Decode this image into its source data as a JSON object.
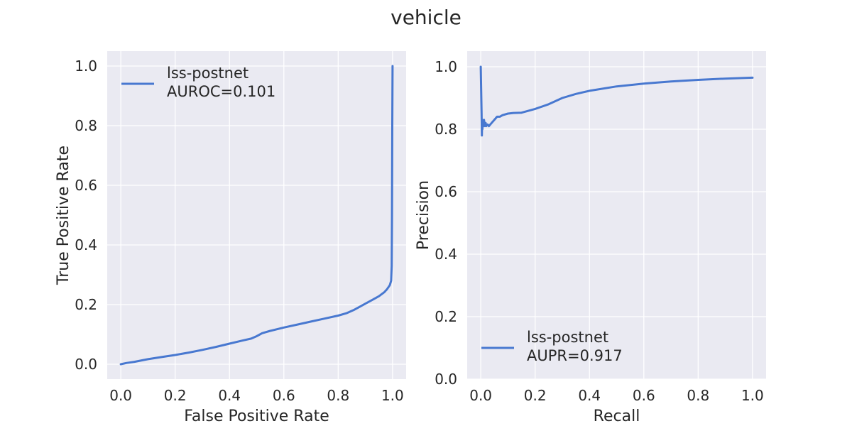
{
  "figure": {
    "title": "vehicle"
  },
  "chart_data": [
    {
      "type": "line",
      "xlabel": "False Positive Rate",
      "ylabel": "True Positive Rate",
      "xlim": [
        -0.05,
        1.05
      ],
      "ylim": [
        -0.05,
        1.05
      ],
      "xticks": [
        "0.0",
        "0.2",
        "0.4",
        "0.6",
        "0.8",
        "1.0"
      ],
      "yticks": [
        "0.0",
        "0.2",
        "0.4",
        "0.6",
        "0.8",
        "1.0"
      ],
      "grid": true,
      "legend_position": "top-left",
      "line_color": "#4878d0",
      "series": [
        {
          "name": "lss-postnet",
          "legend_text": [
            "lss-postnet",
            "AUROC=0.101"
          ],
          "x": [
            0.0,
            0.02,
            0.05,
            0.1,
            0.15,
            0.2,
            0.25,
            0.3,
            0.35,
            0.4,
            0.45,
            0.48,
            0.5,
            0.52,
            0.55,
            0.6,
            0.65,
            0.7,
            0.75,
            0.8,
            0.83,
            0.86,
            0.88,
            0.9,
            0.93,
            0.95,
            0.97,
            0.98,
            0.99,
            0.995,
            0.997,
            0.998,
            0.999,
            1.0
          ],
          "y": [
            0.0,
            0.004,
            0.008,
            0.017,
            0.024,
            0.031,
            0.039,
            0.048,
            0.058,
            0.069,
            0.08,
            0.086,
            0.094,
            0.104,
            0.112,
            0.123,
            0.133,
            0.143,
            0.153,
            0.163,
            0.171,
            0.183,
            0.193,
            0.203,
            0.218,
            0.228,
            0.242,
            0.252,
            0.265,
            0.28,
            0.33,
            0.5,
            0.8,
            1.0
          ]
        }
      ]
    },
    {
      "type": "line",
      "xlabel": "Recall",
      "ylabel": "Precision",
      "xlim": [
        -0.05,
        1.05
      ],
      "ylim": [
        0.0,
        1.05
      ],
      "xticks": [
        "0.0",
        "0.2",
        "0.4",
        "0.6",
        "0.8",
        "1.0"
      ],
      "yticks": [
        "0.0",
        "0.2",
        "0.4",
        "0.6",
        "0.8",
        "1.0"
      ],
      "grid": true,
      "legend_position": "bottom-left",
      "line_color": "#4878d0",
      "series": [
        {
          "name": "lss-postnet",
          "legend_text": [
            "lss-postnet",
            "AUPR=0.917"
          ],
          "x": [
            0.0,
            0.001,
            0.002,
            0.003,
            0.004,
            0.005,
            0.006,
            0.008,
            0.01,
            0.012,
            0.015,
            0.018,
            0.02,
            0.025,
            0.03,
            0.04,
            0.05,
            0.06,
            0.07,
            0.08,
            0.1,
            0.12,
            0.15,
            0.18,
            0.2,
            0.25,
            0.3,
            0.35,
            0.4,
            0.5,
            0.6,
            0.7,
            0.8,
            0.9,
            1.0
          ],
          "y": [
            1.0,
            0.95,
            0.9,
            0.85,
            0.78,
            0.83,
            0.8,
            0.82,
            0.81,
            0.83,
            0.81,
            0.82,
            0.81,
            0.815,
            0.81,
            0.82,
            0.83,
            0.84,
            0.84,
            0.845,
            0.85,
            0.852,
            0.853,
            0.86,
            0.865,
            0.88,
            0.9,
            0.913,
            0.923,
            0.937,
            0.946,
            0.953,
            0.958,
            0.962,
            0.965
          ]
        }
      ]
    }
  ]
}
